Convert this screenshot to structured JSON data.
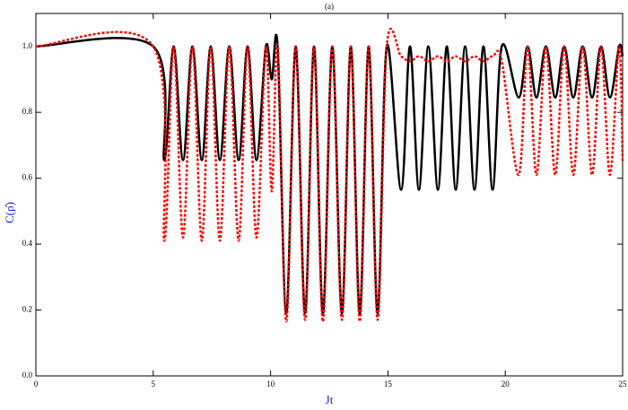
{
  "chart_data": {
    "type": "line",
    "title": "(a)",
    "x_label": "Jt",
    "y_label": "C(ρ̂)",
    "x": [
      0,
      5.0,
      5.47,
      5.87,
      6.27,
      6.67,
      7.07,
      7.45,
      7.84,
      8.24,
      8.64,
      9.02,
      9.4,
      9.8,
      10.05,
      10.3,
      10.67,
      11.07,
      11.47,
      11.85,
      12.23,
      12.63,
      13.04,
      13.42,
      13.8,
      14.18,
      14.56,
      14.95,
      15.56,
      15.94,
      16.32,
      16.72,
      17.13,
      17.51,
      17.89,
      18.29,
      18.69,
      19.07,
      19.46,
      19.85,
      20.57,
      20.95,
      21.33,
      21.73,
      22.13,
      22.51,
      22.9,
      23.3,
      23.7,
      24.08,
      24.46,
      24.85,
      25
    ],
    "series": [
      {
        "color": "#000000",
        "style": "solid",
        "values": [
          1,
          1,
          0.655,
          1,
          0.655,
          1,
          0.655,
          1,
          0.655,
          1,
          0.655,
          1,
          0.655,
          1,
          0.9,
          1,
          0.19,
          1,
          0.19,
          1,
          0.19,
          1,
          0.19,
          1,
          0.19,
          1,
          0.19,
          1,
          0.565,
          1,
          0.565,
          1,
          0.565,
          1,
          0.565,
          1,
          0.565,
          1,
          0.565,
          1,
          0.845,
          1,
          0.845,
          1,
          0.845,
          1,
          0.845,
          1,
          0.845,
          1,
          0.845,
          1,
          0.97
        ]
      },
      {
        "color": "#ff0000",
        "style": "dotted",
        "values": [
          1,
          1,
          0.41,
          1,
          0.42,
          1,
          0.41,
          1,
          0.41,
          1,
          0.41,
          1,
          0.42,
          1,
          0.56,
          1,
          0.165,
          1,
          0.17,
          1,
          0.165,
          1,
          0.17,
          1,
          0.165,
          1,
          0.17,
          1,
          0.97,
          0.955,
          0.97,
          0.955,
          0.97,
          0.955,
          0.97,
          0.955,
          0.97,
          0.955,
          0.97,
          0.955,
          0.61,
          1,
          0.61,
          1,
          0.61,
          1,
          0.61,
          1,
          0.61,
          1,
          0.61,
          1,
          0.65
        ]
      }
    ],
    "xlim": [
      0,
      25
    ],
    "xticks": [
      0,
      5,
      10,
      15,
      20,
      25
    ],
    "ylim": [
      0,
      1.1
    ],
    "yticks": [
      {
        "value": 0,
        "label": "0.0"
      },
      0.2,
      0.4,
      0.6,
      0.8,
      {
        "value": 1,
        "label": "1.0"
      }
    ],
    "grid": false
  }
}
